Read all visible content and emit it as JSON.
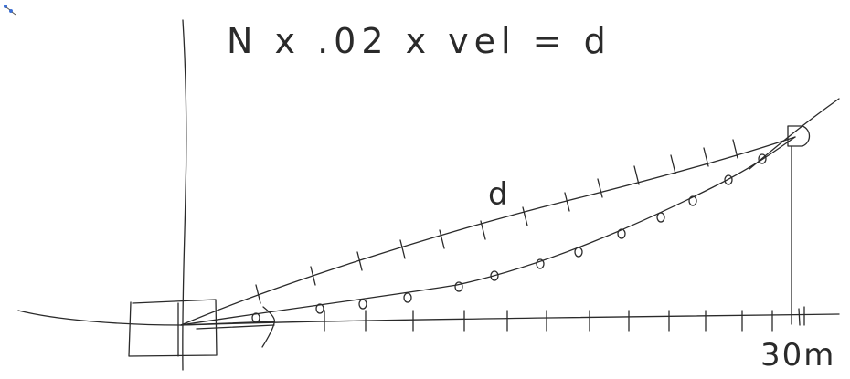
{
  "formula": "N x .02 x vel = d",
  "curve_label": "d",
  "distance_label": "30m",
  "tool_icon": "pen-cursor-icon"
}
